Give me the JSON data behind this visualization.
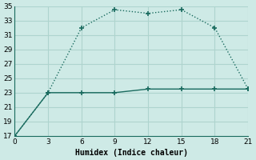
{
  "line1_x": [
    0,
    3,
    6,
    9,
    12,
    15,
    18,
    21
  ],
  "line1_y": [
    17,
    23,
    32,
    34.5,
    34,
    34.5,
    32,
    23.5
  ],
  "line2_x": [
    0,
    3,
    6,
    9,
    12,
    15,
    18,
    21
  ],
  "line2_y": [
    17,
    23,
    23,
    23,
    23.5,
    23.5,
    23.5,
    23.5
  ],
  "line_color": "#1a6b5f",
  "bg_color": "#ceeae6",
  "grid_color": "#aed4ce",
  "xlabel": "Humidex (Indice chaleur)",
  "xlim": [
    0,
    21
  ],
  "ylim": [
    17,
    35
  ],
  "xticks": [
    0,
    3,
    6,
    9,
    12,
    15,
    18,
    21
  ],
  "yticks": [
    17,
    19,
    21,
    23,
    25,
    27,
    29,
    31,
    33,
    35
  ],
  "xlabel_fontsize": 7,
  "tick_fontsize": 6.5
}
